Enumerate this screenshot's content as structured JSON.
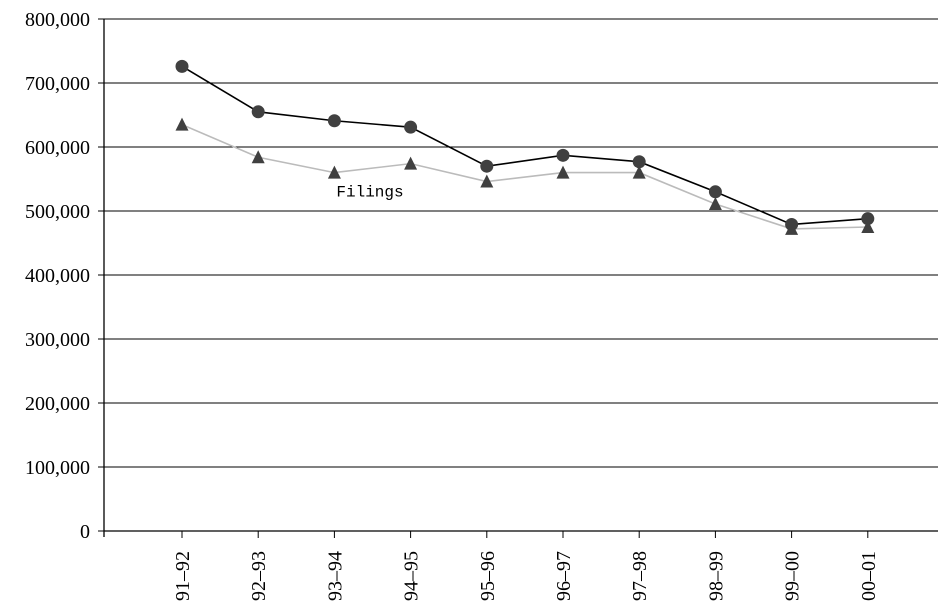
{
  "chart_data": {
    "type": "line",
    "categories": [
      "91–92",
      "92–93",
      "93–94",
      "94–95",
      "95–96",
      "96–97",
      "97–98",
      "98–99",
      "99–00",
      "00–01"
    ],
    "series": [
      {
        "marker": "circle",
        "color": "#000000",
        "marker_color": "#404040",
        "values": [
          726000,
          655000,
          641000,
          631000,
          570000,
          587000,
          577000,
          530000,
          479000,
          488000
        ]
      },
      {
        "marker": "triangle",
        "color": "#bbbbbb",
        "marker_color": "#404040",
        "values": [
          635000,
          584000,
          560000,
          574000,
          546000,
          560000,
          560000,
          511000,
          472000,
          475000
        ]
      }
    ],
    "ylim": [
      0,
      800000
    ],
    "yticks": [
      0,
      100000,
      200000,
      300000,
      400000,
      500000,
      600000,
      700000,
      800000
    ],
    "ytick_labels": [
      "0",
      "100,000",
      "200,000",
      "300,000",
      "400,000",
      "500,000",
      "600,000",
      "700,000",
      "800,000"
    ],
    "grid": true,
    "annotations": [
      {
        "text": "Filings",
        "x_category": "93–94",
        "y": 515000
      }
    ]
  }
}
